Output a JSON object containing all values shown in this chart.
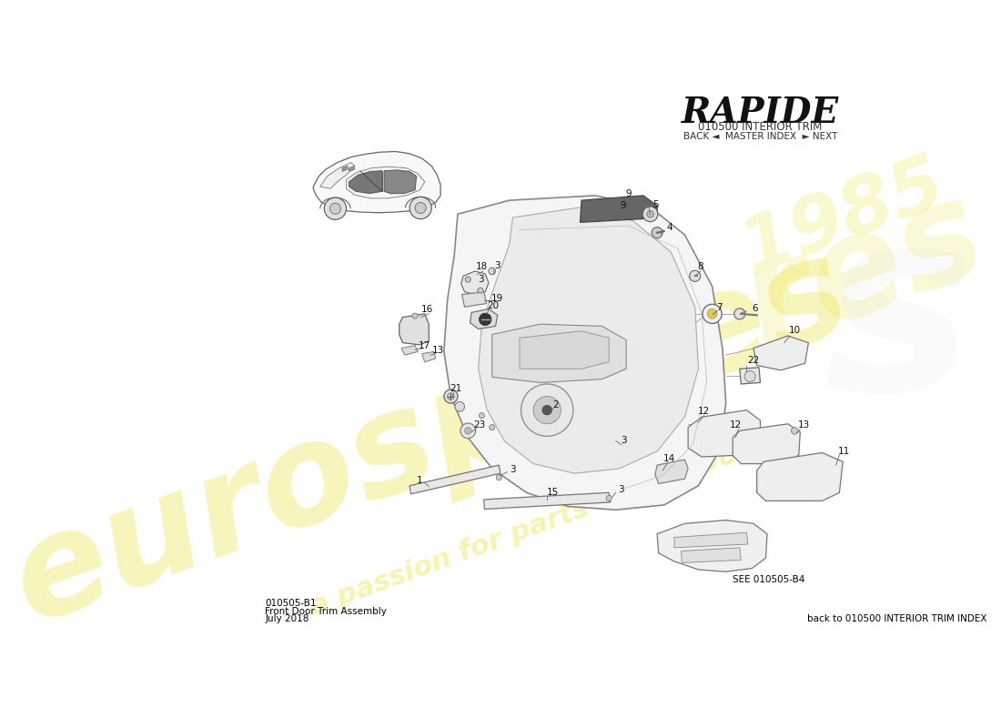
{
  "title": "RAPIDE",
  "subtitle": "010500 INTERIOR TRIM",
  "nav": "BACK ◄  MASTER INDEX  ► NEXT",
  "footer_left_code": "010505-B1",
  "footer_left_line1": "Front Door Trim Assembly",
  "footer_left_line2": "July 2018",
  "footer_right": "back to 010500 INTERIOR TRIM INDEX",
  "see_ref": "SEE 010505-B4",
  "bg_color": "#ffffff",
  "watermark1": "eurospares",
  "watermark2": "a passion for parts since 1985",
  "line_color": "#555555",
  "fill_light": "#f2f2f2",
  "fill_white": "#ffffff",
  "fill_dark": "#555555"
}
